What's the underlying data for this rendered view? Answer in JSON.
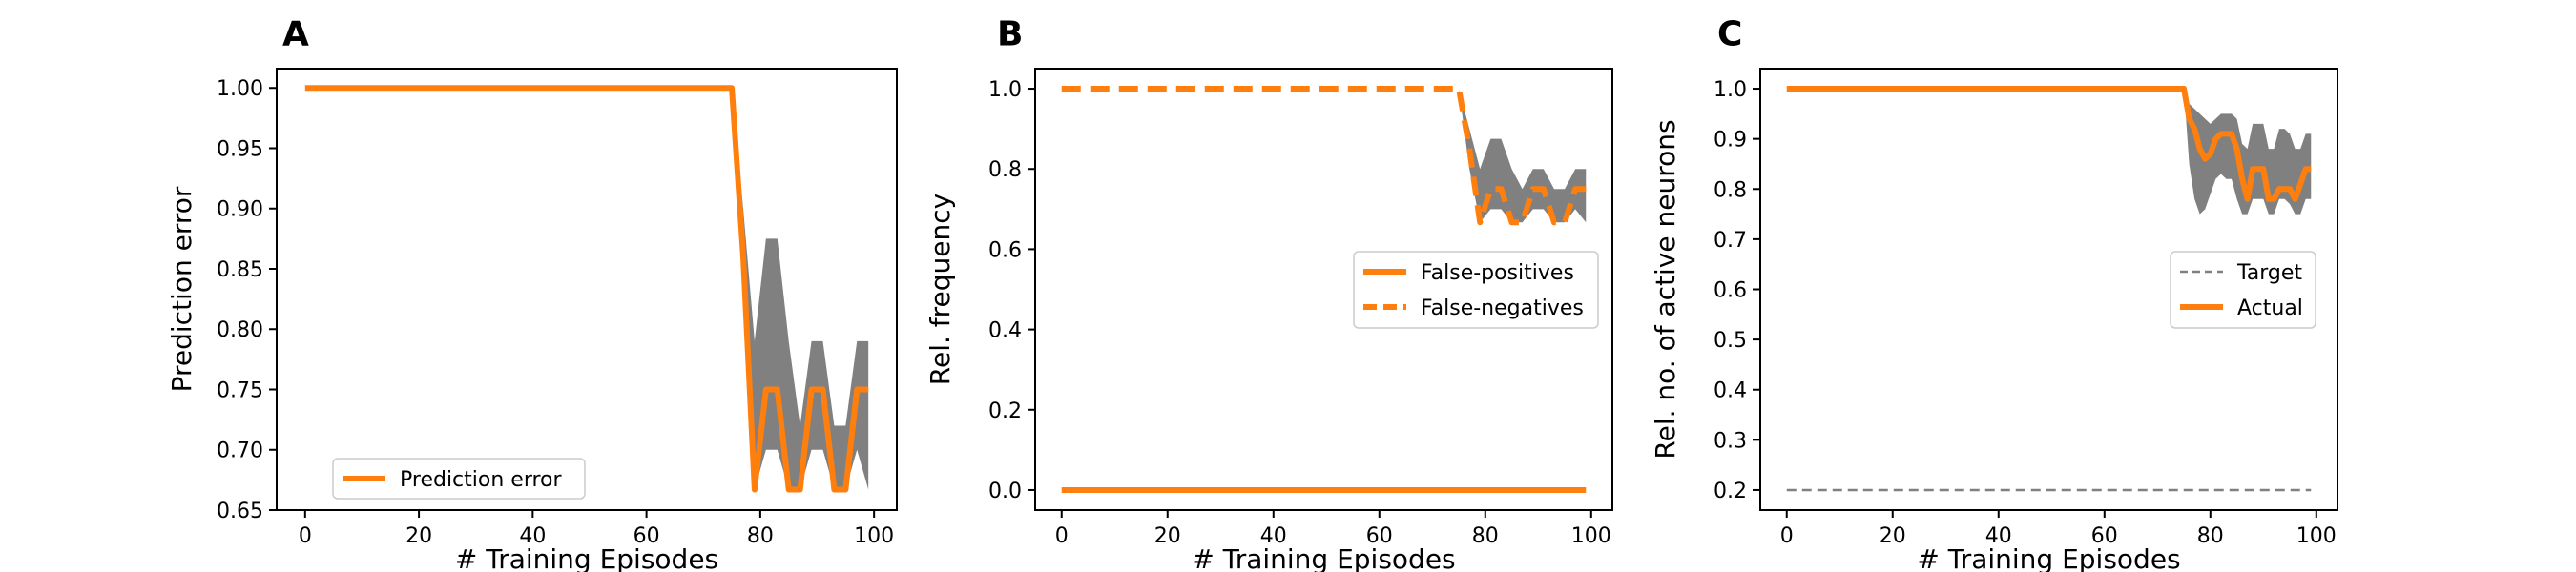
{
  "colors": {
    "series_orange": "#ff7f0e",
    "band_gray": "#808080",
    "target_gray": "#808080",
    "axis": "#000000",
    "legend_border": "#cccccc"
  },
  "chart_data": [
    {
      "panel": "A",
      "type": "line",
      "xlabel": "# Training Episodes",
      "ylabel": "Prediction error",
      "xlim": [
        -5,
        104
      ],
      "ylim": [
        0.65,
        1.016
      ],
      "xticks": [
        0,
        20,
        40,
        60,
        80,
        100
      ],
      "yticks": [
        0.65,
        0.7,
        0.75,
        0.8,
        0.85,
        0.9,
        0.95,
        1.0
      ],
      "ytick_labels": [
        "0.65",
        "0.70",
        "0.75",
        "0.80",
        "0.85",
        "0.90",
        "0.95",
        "1.00"
      ],
      "legend_position": "lower-left",
      "series": [
        {
          "name": "Prediction error",
          "style": "solid",
          "x": [
            0,
            75,
            77,
            79,
            81,
            83,
            85,
            87,
            89,
            91,
            93,
            95,
            97,
            99
          ],
          "y": [
            1.0,
            1.0,
            0.86,
            0.667,
            0.75,
            0.75,
            0.667,
            0.667,
            0.75,
            0.75,
            0.667,
            0.667,
            0.75,
            0.75
          ]
        }
      ],
      "band": {
        "x": [
          75,
          77,
          79,
          81,
          83,
          85,
          87,
          89,
          91,
          93,
          95,
          97,
          99
        ],
        "lower": [
          1.0,
          0.82,
          0.667,
          0.7,
          0.7,
          0.667,
          0.667,
          0.7,
          0.7,
          0.667,
          0.667,
          0.7,
          0.667
        ],
        "upper": [
          1.0,
          0.9,
          0.79,
          0.875,
          0.875,
          0.79,
          0.72,
          0.79,
          0.79,
          0.72,
          0.72,
          0.79,
          0.79
        ]
      }
    },
    {
      "panel": "B",
      "type": "line",
      "xlabel": "# Training Episodes",
      "ylabel": "Rel. frequency",
      "xlim": [
        -5,
        104
      ],
      "ylim": [
        -0.05,
        1.05
      ],
      "xticks": [
        0,
        20,
        40,
        60,
        80,
        100
      ],
      "yticks": [
        0.0,
        0.2,
        0.4,
        0.6,
        0.8,
        1.0
      ],
      "ytick_labels": [
        "0.0",
        "0.2",
        "0.4",
        "0.6",
        "0.8",
        "1.0"
      ],
      "legend_position": "center-right",
      "series": [
        {
          "name": "False-positives",
          "style": "solid",
          "x": [
            0,
            99
          ],
          "y": [
            0.0,
            0.0
          ]
        },
        {
          "name": "False-negatives",
          "style": "dashed",
          "x": [
            0,
            75,
            77,
            79,
            81,
            83,
            85,
            87,
            89,
            91,
            93,
            95,
            97,
            99
          ],
          "y": [
            1.0,
            1.0,
            0.85,
            0.667,
            0.75,
            0.75,
            0.667,
            0.667,
            0.75,
            0.75,
            0.667,
            0.667,
            0.75,
            0.75
          ]
        }
      ],
      "band": {
        "x": [
          75,
          77,
          79,
          81,
          83,
          85,
          87,
          89,
          91,
          93,
          95,
          97,
          99
        ],
        "lower": [
          1.0,
          0.8,
          0.667,
          0.7,
          0.7,
          0.667,
          0.667,
          0.7,
          0.7,
          0.667,
          0.667,
          0.7,
          0.667
        ],
        "upper": [
          1.0,
          0.9,
          0.8,
          0.875,
          0.875,
          0.8,
          0.75,
          0.8,
          0.8,
          0.75,
          0.75,
          0.8,
          0.8
        ]
      }
    },
    {
      "panel": "C",
      "type": "line",
      "xlabel": "# Training Episodes",
      "ylabel": "Rel. no. of active neurons",
      "xlim": [
        -5,
        104
      ],
      "ylim": [
        0.16,
        1.04
      ],
      "xticks": [
        0,
        20,
        40,
        60,
        80,
        100
      ],
      "yticks": [
        0.2,
        0.3,
        0.4,
        0.5,
        0.6,
        0.7,
        0.8,
        0.9,
        1.0
      ],
      "ytick_labels": [
        "0.2",
        "0.3",
        "0.4",
        "0.5",
        "0.6",
        "0.7",
        "0.8",
        "0.9",
        "1.0"
      ],
      "legend_position": "center-right",
      "series": [
        {
          "name": "Target",
          "style": "thin-dashed",
          "x": [
            0,
            99
          ],
          "y": [
            0.2,
            0.2
          ]
        },
        {
          "name": "Actual",
          "style": "solid",
          "x": [
            0,
            75,
            76,
            77,
            78,
            79,
            80,
            81,
            82,
            83,
            84,
            85,
            86,
            87,
            88,
            89,
            90,
            91,
            92,
            93,
            94,
            95,
            96,
            97,
            98,
            99
          ],
          "y": [
            1.0,
            1.0,
            0.94,
            0.92,
            0.88,
            0.86,
            0.87,
            0.9,
            0.91,
            0.91,
            0.91,
            0.88,
            0.82,
            0.78,
            0.84,
            0.84,
            0.84,
            0.78,
            0.78,
            0.8,
            0.8,
            0.8,
            0.78,
            0.81,
            0.84,
            0.84
          ]
        }
      ],
      "band": {
        "x": [
          75,
          76,
          77,
          78,
          79,
          80,
          81,
          82,
          83,
          84,
          85,
          86,
          87,
          88,
          89,
          90,
          91,
          92,
          93,
          94,
          95,
          96,
          97,
          98,
          99
        ],
        "lower": [
          1.0,
          0.85,
          0.78,
          0.75,
          0.76,
          0.79,
          0.82,
          0.83,
          0.82,
          0.82,
          0.78,
          0.75,
          0.75,
          0.78,
          0.78,
          0.78,
          0.75,
          0.75,
          0.78,
          0.78,
          0.77,
          0.75,
          0.75,
          0.78,
          0.78
        ],
        "upper": [
          1.0,
          0.97,
          0.96,
          0.95,
          0.94,
          0.93,
          0.94,
          0.95,
          0.95,
          0.95,
          0.94,
          0.89,
          0.88,
          0.93,
          0.93,
          0.93,
          0.88,
          0.88,
          0.92,
          0.92,
          0.91,
          0.88,
          0.88,
          0.91,
          0.91
        ]
      }
    }
  ]
}
